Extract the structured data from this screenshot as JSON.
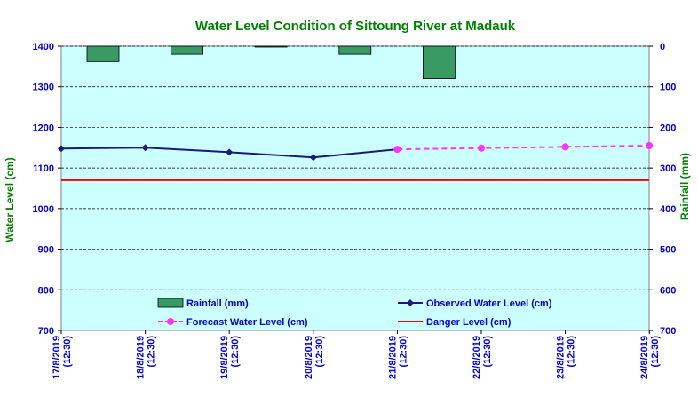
{
  "chart_data": {
    "type": "line",
    "title": "Water Level Condition  of  Sittoung River at  Madauk",
    "ylabel_left": "Water Level (cm)",
    "ylabel_right": "Rainfall (mm)",
    "categories": [
      "17/8/2019 (12:30)",
      "18/8/2019 (12:30)",
      "19/8/2019 (12:30)",
      "20/8/2019 (12:30)",
      "21/8/2019 (12:30)",
      "22/8/2019 (12:30)",
      "23/8/2019 (12:30)",
      "24/8/2019 (12:30)"
    ],
    "category_lines": [
      [
        "17/8/2019",
        "(12:30)"
      ],
      [
        "18/8/2019",
        "(12:30)"
      ],
      [
        "19/8/2019",
        "(12:30)"
      ],
      [
        "20/8/2019",
        "(12:30)"
      ],
      [
        "21/8/2019",
        "(12:30)"
      ],
      [
        "22/8/2019",
        "(12:30)"
      ],
      [
        "23/8/2019",
        "(12:30)"
      ],
      [
        "24/8/2019",
        "(12:30)"
      ]
    ],
    "ylim_left": [
      700,
      1400
    ],
    "yticks_left": [
      700,
      800,
      900,
      1000,
      1100,
      1200,
      1300,
      1400
    ],
    "ylim_right": [
      700,
      0
    ],
    "yticks_right": [
      700,
      600,
      500,
      400,
      300,
      200,
      100,
      0
    ],
    "grid": true,
    "legend_placement": "bottom-inside",
    "series": [
      {
        "name": "Rainfall (mm)",
        "kind": "bar",
        "axis": "right",
        "color": "#3a9a63",
        "values": [
          38,
          20,
          2,
          20,
          80,
          null,
          null,
          null
        ]
      },
      {
        "name": "Observed Water Level (cm)",
        "kind": "line",
        "axis": "left",
        "color": "#1a1a7a",
        "values": [
          1148,
          1150,
          1139,
          1126,
          1146,
          null,
          null,
          null
        ]
      },
      {
        "name": "Forecast Water Level (cm)",
        "kind": "dashed-line",
        "axis": "left",
        "color": "#ff33ff",
        "values": [
          null,
          null,
          null,
          null,
          1146,
          1149,
          1152,
          1155
        ]
      },
      {
        "name": "Danger Level (cm)",
        "kind": "hline",
        "axis": "left",
        "color": "#ff0000",
        "value": 1070
      }
    ]
  },
  "colors": {
    "plot_background": "#ccffff",
    "title": "#008000",
    "axis_label": "#008000",
    "tick_label": "#0000cc"
  }
}
